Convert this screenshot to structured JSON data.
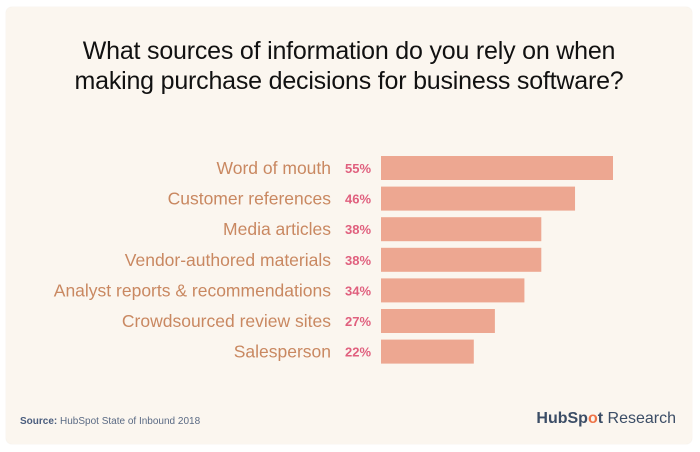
{
  "title_lines": [
    "What sources of information do you rely on when",
    "making purchase decisions for business software?"
  ],
  "chart_data": {
    "type": "bar",
    "orientation": "horizontal",
    "categories": [
      "Word of mouth",
      "Customer references",
      "Media articles",
      "Vendor-authored materials",
      "Analyst reports & recommendations",
      "Crowdsourced review sites",
      "Salesperson"
    ],
    "values": [
      55,
      46,
      38,
      38,
      34,
      27,
      22
    ],
    "value_labels": [
      "55%",
      "46%",
      "38%",
      "38%",
      "34%",
      "27%",
      "22%"
    ],
    "unit": "%",
    "xlim": [
      0,
      55
    ],
    "grid": false,
    "legend": "none",
    "colors": {
      "bar": "#eda791",
      "category_text": "#c98861",
      "value_text": "#e0607e"
    }
  },
  "footer": {
    "source_label": "Source:",
    "source_text": "HubSpot State of Inbound 2018",
    "brand_hub": "HubSp",
    "brand_o": "o",
    "brand_t": "t",
    "brand_suffix": "Research"
  }
}
